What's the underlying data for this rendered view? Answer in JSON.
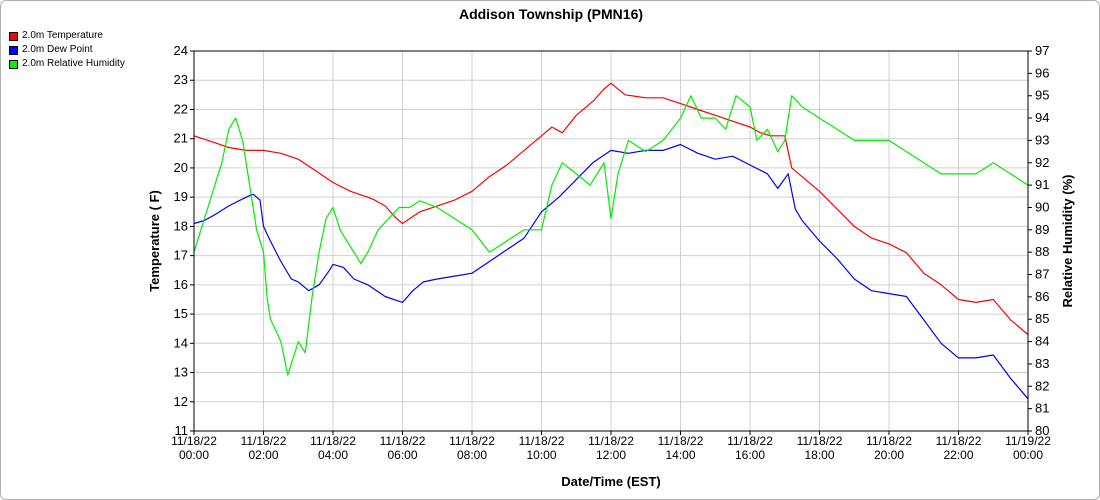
{
  "chart_data": {
    "type": "line",
    "title": "Addison Township (PMN16)",
    "xlabel": "Date/Time (EST)",
    "ylabel_left": "Temperature ( F)",
    "ylabel_right": "Relative Humidity (%)",
    "grid": true,
    "legend_position": "top-left",
    "x_range_hours": [
      0,
      24
    ],
    "ylim_left": [
      11,
      24
    ],
    "ylim_right": [
      80,
      97
    ],
    "x_ticks": [
      {
        "hour": 0,
        "date": "11/18/22",
        "time": "00:00"
      },
      {
        "hour": 2,
        "date": "11/18/22",
        "time": "02:00"
      },
      {
        "hour": 4,
        "date": "11/18/22",
        "time": "04:00"
      },
      {
        "hour": 6,
        "date": "11/18/22",
        "time": "06:00"
      },
      {
        "hour": 8,
        "date": "11/18/22",
        "time": "08:00"
      },
      {
        "hour": 10,
        "date": "11/18/22",
        "time": "10:00"
      },
      {
        "hour": 12,
        "date": "11/18/22",
        "time": "12:00"
      },
      {
        "hour": 14,
        "date": "11/18/22",
        "time": "14:00"
      },
      {
        "hour": 16,
        "date": "11/18/22",
        "time": "16:00"
      },
      {
        "hour": 18,
        "date": "11/18/22",
        "time": "18:00"
      },
      {
        "hour": 20,
        "date": "11/18/22",
        "time": "20:00"
      },
      {
        "hour": 22,
        "date": "11/18/22",
        "time": "22:00"
      },
      {
        "hour": 24,
        "date": "11/19/22",
        "time": "00:00"
      }
    ],
    "y_ticks_left": [
      11,
      12,
      13,
      14,
      15,
      16,
      17,
      18,
      19,
      20,
      21,
      22,
      23,
      24
    ],
    "y_ticks_right": [
      80,
      81,
      82,
      83,
      84,
      85,
      86,
      87,
      88,
      89,
      90,
      91,
      92,
      93,
      94,
      95,
      96,
      97
    ],
    "series": [
      {
        "name": "2.0m Temperature",
        "color": "#ff0000",
        "axis": "left",
        "x": [
          0,
          0.5,
          1,
          1.5,
          2,
          2.5,
          3,
          3.5,
          4,
          4.5,
          5,
          5.2,
          5.5,
          5.8,
          6,
          6.5,
          7,
          7.5,
          8,
          8.5,
          9,
          9.5,
          10,
          10.3,
          10.6,
          11,
          11.5,
          11.8,
          12,
          12.4,
          13,
          13.5,
          14,
          14.5,
          15,
          15.5,
          16,
          16.3,
          16.6,
          17,
          17.2,
          17.5,
          18,
          18.5,
          19,
          19.5,
          20,
          20.5,
          21,
          21.5,
          22,
          22.5,
          23,
          23.5,
          24
        ],
        "values": [
          21.1,
          20.9,
          20.7,
          20.6,
          20.6,
          20.5,
          20.3,
          19.9,
          19.5,
          19.2,
          19.0,
          18.9,
          18.7,
          18.3,
          18.1,
          18.5,
          18.7,
          18.9,
          19.2,
          19.7,
          20.1,
          20.6,
          21.1,
          21.4,
          21.2,
          21.8,
          22.3,
          22.7,
          22.9,
          22.5,
          22.4,
          22.4,
          22.2,
          22.0,
          21.8,
          21.6,
          21.4,
          21.2,
          21.1,
          21.1,
          20.0,
          19.7,
          19.2,
          18.6,
          18.0,
          17.6,
          17.4,
          17.1,
          16.4,
          16.0,
          15.5,
          15.4,
          15.5,
          14.8,
          14.3
        ]
      },
      {
        "name": "2.0m Dew Point",
        "color": "#0000ff",
        "axis": "left",
        "x": [
          0,
          0.3,
          0.6,
          1,
          1.5,
          1.7,
          1.9,
          2.0,
          2.2,
          2.5,
          2.8,
          3.0,
          3.3,
          3.6,
          3.9,
          4.0,
          4.3,
          4.6,
          5.0,
          5.5,
          6.0,
          6.3,
          6.6,
          7.0,
          7.5,
          8.0,
          8.5,
          9,
          9.5,
          10,
          10.5,
          11,
          11.5,
          12,
          12.5,
          13,
          13.5,
          14,
          14.5,
          15,
          15.5,
          16,
          16.5,
          16.8,
          17.1,
          17.3,
          17.5,
          18,
          18.5,
          19,
          19.5,
          20,
          20.5,
          21,
          21.5,
          22,
          22.5,
          23,
          23.5,
          24
        ],
        "values": [
          18.1,
          18.2,
          18.4,
          18.7,
          19.0,
          19.1,
          18.9,
          18.0,
          17.5,
          16.8,
          16.2,
          16.1,
          15.8,
          16.0,
          16.5,
          16.7,
          16.6,
          16.2,
          16.0,
          15.6,
          15.4,
          15.8,
          16.1,
          16.2,
          16.3,
          16.4,
          16.8,
          17.2,
          17.6,
          18.5,
          19.0,
          19.6,
          20.2,
          20.6,
          20.5,
          20.6,
          20.6,
          20.8,
          20.5,
          20.3,
          20.4,
          20.1,
          19.8,
          19.3,
          19.8,
          18.6,
          18.2,
          17.5,
          16.9,
          16.2,
          15.8,
          15.7,
          15.6,
          14.8,
          14.0,
          13.5,
          13.5,
          13.6,
          12.8,
          12.1
        ]
      },
      {
        "name": "2.0m Relative Humidity",
        "color": "#00ee00",
        "axis": "right",
        "x": [
          0,
          0.2,
          0.4,
          0.6,
          0.8,
          1.0,
          1.2,
          1.4,
          1.6,
          1.8,
          2.0,
          2.1,
          2.2,
          2.35,
          2.5,
          2.7,
          2.8,
          2.9,
          3.0,
          3.2,
          3.4,
          3.6,
          3.8,
          4.0,
          4.2,
          4.4,
          4.6,
          4.8,
          5.0,
          5.3,
          5.6,
          5.9,
          6.2,
          6.5,
          7.0,
          7.5,
          8.0,
          8.5,
          9.0,
          9.5,
          10.0,
          10.3,
          10.6,
          11,
          11.4,
          11.8,
          12.0,
          12.2,
          12.5,
          13.0,
          13.5,
          14.0,
          14.3,
          14.6,
          15.0,
          15.3,
          15.6,
          16.0,
          16.2,
          16.5,
          16.8,
          17.0,
          17.2,
          17.5,
          18.0,
          18.5,
          19,
          19.5,
          20,
          20.5,
          21,
          21.5,
          22,
          22.5,
          23,
          23.5,
          24
        ],
        "values": [
          88,
          89,
          90,
          91,
          92,
          93.5,
          94,
          93,
          91,
          89,
          88,
          86,
          85,
          84.5,
          84,
          82.5,
          83,
          83.5,
          84,
          83.5,
          86,
          88,
          89.5,
          90,
          89,
          88.5,
          88,
          87.5,
          88,
          89,
          89.5,
          90,
          90,
          90.3,
          90,
          89.5,
          89,
          88,
          88.5,
          89,
          89,
          91,
          92,
          91.5,
          91,
          92,
          89.5,
          91.5,
          93,
          92.5,
          93,
          94,
          95,
          94,
          94,
          93.5,
          95,
          94.5,
          93,
          93.5,
          92.5,
          93,
          95,
          94.5,
          94,
          93.5,
          93,
          93,
          93,
          92.5,
          92,
          91.5,
          91.5,
          91.5,
          92,
          91.5,
          91
        ]
      }
    ]
  }
}
